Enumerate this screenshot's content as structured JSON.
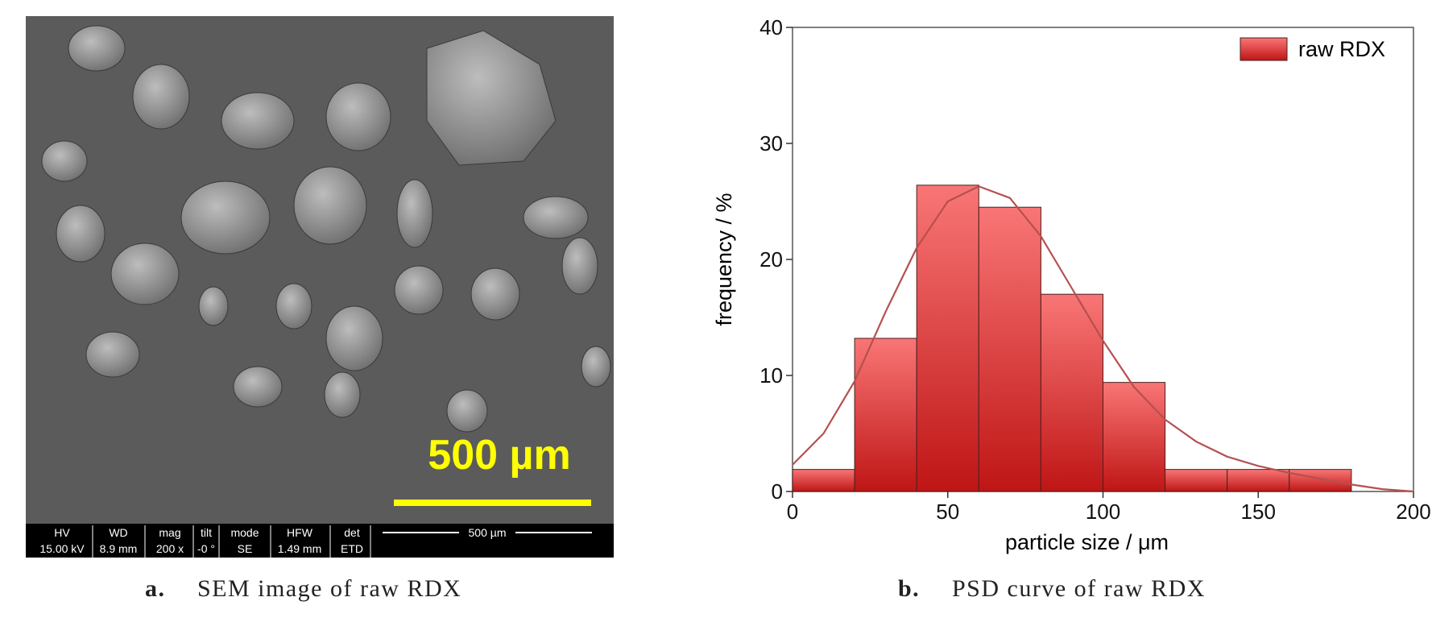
{
  "chart_data": {
    "type": "histogram",
    "xlabel": "particle size / μm",
    "ylabel": "frequency / %",
    "bins": [
      0,
      20,
      40,
      60,
      80,
      100,
      120,
      140,
      160,
      180
    ],
    "series": [
      {
        "name": "raw RDX",
        "color": "#e23a3a",
        "values": [
          1.9,
          13.2,
          26.4,
          24.5,
          17,
          9.4,
          1.9,
          1.9,
          1.9
        ]
      }
    ],
    "gradient": {
      "top": "#f97676",
      "bottom": "#bf1515"
    },
    "curve": {
      "color": "#b5504f",
      "x": [
        0,
        10,
        20,
        30,
        40,
        50,
        60,
        70,
        80,
        90,
        100,
        110,
        120,
        130,
        140,
        150,
        160,
        170,
        180,
        190,
        200
      ],
      "values": [
        2.3,
        5,
        9.5,
        15.5,
        21,
        25,
        26.3,
        25.3,
        22,
        17.5,
        13,
        9,
        6.2,
        4.3,
        3,
        2.2,
        1.6,
        1.1,
        0.6,
        0.2,
        0
      ]
    },
    "xlim": [
      0,
      200
    ],
    "xticks": [
      0,
      50,
      100,
      150,
      200
    ],
    "ylim": [
      0,
      40
    ],
    "yticks": [
      0,
      10,
      20,
      30,
      40
    ],
    "legend": "upper right"
  },
  "sem": {
    "scale_label": "500 µm",
    "info": [
      {
        "label": "HV",
        "value": "15.00 kV"
      },
      {
        "label": "WD",
        "value": "8.9 mm"
      },
      {
        "label": "mag",
        "value": "200 x"
      },
      {
        "label": "tilt",
        "value": "-0 °"
      },
      {
        "label": "mode",
        "value": "SE"
      },
      {
        "label": "HFW",
        "value": "1.49 mm"
      },
      {
        "label": "det",
        "value": "ETD"
      }
    ],
    "bar_label": "500 µm"
  },
  "captions": [
    {
      "letter": "a.",
      "text": "SEM image of raw RDX"
    },
    {
      "letter": "b.",
      "text": "PSD curve of raw RDX"
    }
  ]
}
